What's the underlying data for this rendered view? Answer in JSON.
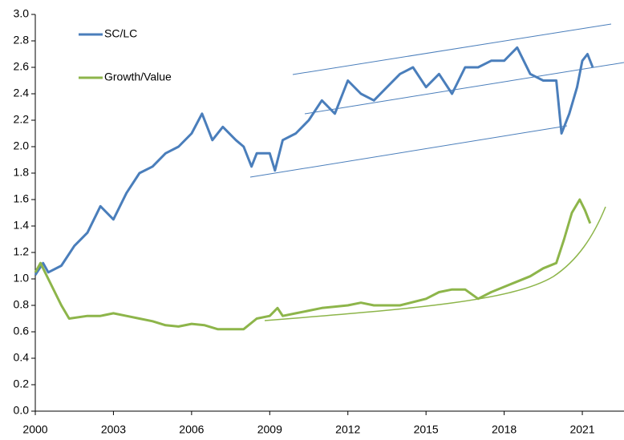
{
  "chart_data": {
    "type": "line",
    "series": [
      {
        "name": "SC/LC",
        "color": "#4a7ebb",
        "x": [
          2000.0,
          2000.3,
          2000.5,
          2001.0,
          2001.5,
          2002.0,
          2002.5,
          2003.0,
          2003.5,
          2004.0,
          2004.5,
          2005.0,
          2005.5,
          2006.0,
          2006.4,
          2006.8,
          2007.2,
          2007.7,
          2008.0,
          2008.3,
          2008.5,
          2009.0,
          2009.2,
          2009.5,
          2010.0,
          2010.5,
          2011.0,
          2011.5,
          2012.0,
          2012.5,
          2013.0,
          2013.5,
          2014.0,
          2014.5,
          2015.0,
          2015.5,
          2016.0,
          2016.5,
          2017.0,
          2017.5,
          2018.0,
          2018.5,
          2019.0,
          2019.5,
          2020.0,
          2020.2,
          2020.5,
          2020.8,
          2021.0,
          2021.2,
          2021.4
        ],
        "values": [
          1.03,
          1.12,
          1.05,
          1.1,
          1.25,
          1.35,
          1.55,
          1.45,
          1.65,
          1.8,
          1.85,
          1.95,
          2.0,
          2.1,
          2.25,
          2.05,
          2.15,
          2.05,
          2.0,
          1.85,
          1.95,
          1.95,
          1.82,
          2.05,
          2.1,
          2.2,
          2.35,
          2.25,
          2.5,
          2.4,
          2.35,
          2.45,
          2.55,
          2.6,
          2.45,
          2.55,
          2.4,
          2.6,
          2.6,
          2.65,
          2.65,
          2.75,
          2.55,
          2.5,
          2.5,
          2.1,
          2.25,
          2.45,
          2.65,
          2.7,
          2.6
        ]
      },
      {
        "name": "Growth/Value",
        "color": "#8db54a",
        "x": [
          2000.0,
          2000.2,
          2000.5,
          2001.0,
          2001.3,
          2002.0,
          2002.5,
          2003.0,
          2003.5,
          2004.0,
          2004.5,
          2005.0,
          2005.5,
          2006.0,
          2006.5,
          2007.0,
          2008.0,
          2008.5,
          2009.0,
          2009.3,
          2009.5,
          2010.0,
          2011.0,
          2012.0,
          2012.5,
          2013.0,
          2014.0,
          2015.0,
          2015.5,
          2016.0,
          2016.5,
          2017.0,
          2017.5,
          2018.0,
          2018.5,
          2019.0,
          2019.5,
          2020.0,
          2020.3,
          2020.6,
          2020.9,
          2021.1,
          2021.3
        ],
        "values": [
          1.05,
          1.12,
          1.0,
          0.8,
          0.7,
          0.72,
          0.72,
          0.74,
          0.72,
          0.7,
          0.68,
          0.65,
          0.64,
          0.66,
          0.65,
          0.62,
          0.62,
          0.7,
          0.72,
          0.78,
          0.72,
          0.74,
          0.78,
          0.8,
          0.82,
          0.8,
          0.8,
          0.85,
          0.9,
          0.92,
          0.92,
          0.85,
          0.9,
          0.94,
          0.98,
          1.02,
          1.08,
          1.12,
          1.3,
          1.5,
          1.6,
          1.52,
          1.42
        ]
      }
    ],
    "xlim": [
      2000,
      2022.6
    ],
    "xticks": [
      2000,
      2003,
      2006,
      2009,
      2012,
      2015,
      2018,
      2021
    ],
    "ylim": [
      0,
      3
    ],
    "yticks": [
      {
        "value": 0,
        "label": "0.0"
      },
      0.2,
      0.4,
      0.6,
      0.8,
      {
        "value": 1,
        "label": "1.0"
      },
      1.2,
      1.4,
      1.6,
      1.8,
      {
        "value": 2,
        "label": "2.0"
      },
      2.2,
      2.4,
      2.6,
      2.8,
      {
        "value": 3,
        "label": "3.0"
      }
    ],
    "legend": "upper left"
  }
}
